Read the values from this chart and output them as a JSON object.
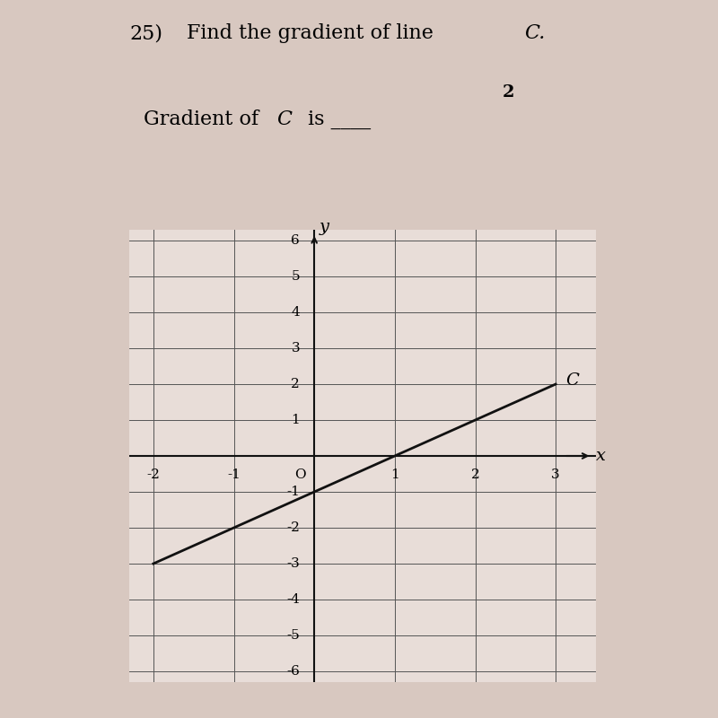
{
  "title_number": "25)",
  "title_text": "Find the gradient of line ",
  "title_italic": "C.",
  "subtitle_text": "Gradient of ",
  "subtitle_italic": "C",
  "subtitle_rest": " is ____",
  "subtitle_marks": "2",
  "bg_color": "#d8c8c0",
  "paper_color": "#e8ddd8",
  "grid_color": "#555555",
  "line_color": "#111111",
  "axis_color": "#111111",
  "x_min": -2,
  "x_max": 3,
  "y_min": -6,
  "y_max": 6,
  "line_C_x1": -2,
  "line_C_y1": -3,
  "line_C_x2": 3,
  "line_C_y2": 2,
  "line_C_label": "C",
  "x_ticks": [
    -2,
    -1,
    0,
    1,
    2,
    3
  ],
  "y_ticks": [
    -6,
    -5,
    -4,
    -3,
    -2,
    -1,
    0,
    1,
    2,
    3,
    4,
    5,
    6
  ]
}
